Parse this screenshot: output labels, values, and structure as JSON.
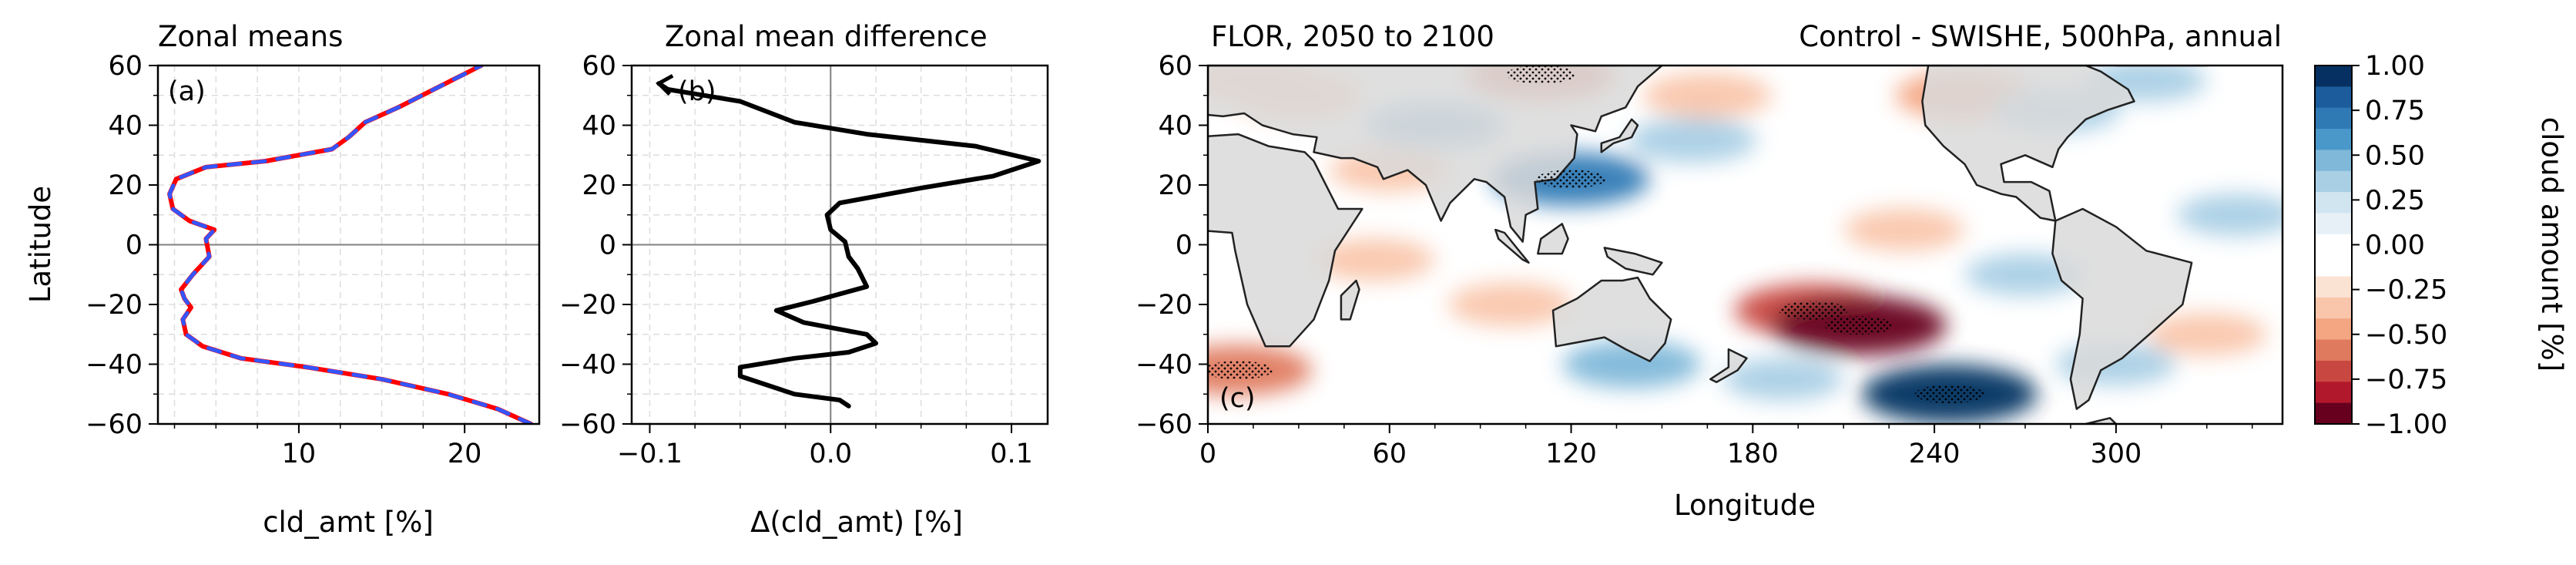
{
  "chart_data": [
    {
      "type": "line",
      "panel_label": "(a)",
      "title": "Zonal means",
      "xlabel": "cld_amt [%]",
      "ylabel": "Latitude",
      "xlim": [
        1.5,
        24.5
      ],
      "ylim": [
        -60,
        60
      ],
      "x_ticks": [
        10,
        20
      ],
      "y_ticks": [
        -60,
        -40,
        -20,
        0,
        20,
        40,
        60
      ],
      "grid": true,
      "series": [
        {
          "color": "#ff0000",
          "dash": false,
          "points": [
            [
              24,
              -60
            ],
            [
              22,
              -55
            ],
            [
              19,
              -50
            ],
            [
              15,
              -45
            ],
            [
              10.5,
              -41
            ],
            [
              6.5,
              -38
            ],
            [
              4.2,
              -34
            ],
            [
              3.2,
              -30
            ],
            [
              3,
              -25
            ],
            [
              3.5,
              -21
            ],
            [
              3.1,
              -18
            ],
            [
              2.9,
              -15
            ],
            [
              3.6,
              -10
            ],
            [
              4.6,
              -4
            ],
            [
              4.4,
              2
            ],
            [
              4.9,
              5
            ],
            [
              3.4,
              8
            ],
            [
              2.4,
              12
            ],
            [
              2.2,
              17
            ],
            [
              2.6,
              22
            ],
            [
              4.4,
              26
            ],
            [
              8,
              28
            ],
            [
              12,
              32
            ],
            [
              13,
              36
            ],
            [
              14,
              41
            ],
            [
              16,
              46
            ],
            [
              18.5,
              53
            ],
            [
              21,
              60
            ]
          ]
        },
        {
          "color": "#3355ff",
          "dash": true,
          "points": [
            [
              24,
              -60
            ],
            [
              22,
              -55
            ],
            [
              19,
              -50
            ],
            [
              15,
              -45
            ],
            [
              10.5,
              -41
            ],
            [
              6.5,
              -38
            ],
            [
              4.2,
              -34
            ],
            [
              3.2,
              -30
            ],
            [
              3,
              -25
            ],
            [
              3.5,
              -21
            ],
            [
              3.1,
              -18
            ],
            [
              2.9,
              -15
            ],
            [
              3.6,
              -10
            ],
            [
              4.6,
              -4
            ],
            [
              4.4,
              2
            ],
            [
              4.9,
              5
            ],
            [
              3.4,
              8
            ],
            [
              2.4,
              12
            ],
            [
              2.2,
              17
            ],
            [
              2.6,
              22
            ],
            [
              4.4,
              26
            ],
            [
              8,
              28
            ],
            [
              12,
              32
            ],
            [
              13,
              36
            ],
            [
              14,
              41
            ],
            [
              16,
              46
            ],
            [
              18.5,
              53
            ],
            [
              21,
              60
            ]
          ]
        }
      ]
    },
    {
      "type": "line",
      "panel_label": "(b)",
      "title": "Zonal mean difference",
      "xlabel": "Δ(cld_amt) [%]",
      "ylabel": "",
      "xlim": [
        -0.11,
        0.12
      ],
      "ylim": [
        -60,
        60
      ],
      "x_ticks": [
        -0.1,
        0.0,
        0.1
      ],
      "x_tick_labels": [
        "−0.1",
        "0.0",
        "0.1"
      ],
      "y_ticks": [
        -60,
        -40,
        -20,
        0,
        20,
        40,
        60
      ],
      "grid": true,
      "series": [
        {
          "color": "#000000",
          "points": [
            [
              0.01,
              -54
            ],
            [
              0.005,
              -52
            ],
            [
              -0.02,
              -50
            ],
            [
              -0.05,
              -44
            ],
            [
              -0.05,
              -41
            ],
            [
              -0.02,
              -38
            ],
            [
              0.01,
              -36
            ],
            [
              0.025,
              -33
            ],
            [
              0.02,
              -30
            ],
            [
              -0.015,
              -26
            ],
            [
              -0.03,
              -22
            ],
            [
              -0.01,
              -19
            ],
            [
              0.02,
              -14
            ],
            [
              0.015,
              -8
            ],
            [
              0.01,
              -4
            ],
            [
              0.008,
              1
            ],
            [
              0.0,
              5
            ],
            [
              -0.002,
              10
            ],
            [
              0.005,
              14
            ],
            [
              0.05,
              19
            ],
            [
              0.09,
              23
            ],
            [
              0.115,
              28
            ],
            [
              0.08,
              33
            ],
            [
              0.02,
              37
            ],
            [
              -0.02,
              41
            ],
            [
              -0.05,
              48
            ],
            [
              -0.09,
              52
            ],
            [
              -0.095,
              54
            ]
          ]
        }
      ]
    },
    {
      "type": "heatmap",
      "panel_label": "(c)",
      "title_left": "FLOR, 2050 to 2100",
      "title_right": "Control - SWISHE, 500hPa, annual",
      "xlabel": "Longitude",
      "ylabel": "",
      "xlim": [
        0,
        355
      ],
      "ylim": [
        -60,
        60
      ],
      "x_ticks": [
        0,
        60,
        120,
        180,
        240,
        300
      ],
      "y_ticks": [
        -60,
        -40,
        -20,
        0,
        20,
        40,
        60
      ],
      "colorbar": {
        "label": "cloud amount [%]",
        "ticks": [
          1.0,
          0.75,
          0.5,
          0.25,
          0.0,
          -0.25,
          -0.5,
          -0.75,
          -1.0
        ],
        "tick_labels": [
          "1.00",
          "0.75",
          "0.50",
          "0.25",
          "0.00",
          "−0.25",
          "−0.50",
          "−0.75",
          "−1.00"
        ],
        "colors": [
          "#053061",
          "#1c5c9c",
          "#2f79b5",
          "#4a98c9",
          "#7fb8d9",
          "#a9cfe5",
          "#d1e5f0",
          "#e7f0f6",
          "#ffffff",
          "#ffffff",
          "#fbe3d4",
          "#f9c6ab",
          "#f4a582",
          "#e07a5f",
          "#c94741",
          "#b2182b",
          "#67001f"
        ]
      },
      "land_color": "#d9d9d9",
      "anomalies": [
        {
          "lon": 200,
          "lat": -22,
          "value": -0.7
        },
        {
          "lon": 215,
          "lat": -27,
          "value": -0.9
        },
        {
          "lon": 245,
          "lat": -50,
          "value": 0.9
        },
        {
          "lon": 120,
          "lat": 22,
          "value": 0.7
        },
        {
          "lon": 75,
          "lat": 40,
          "value": 0.5
        },
        {
          "lon": 140,
          "lat": -40,
          "value": 0.5
        },
        {
          "lon": 10,
          "lat": -42,
          "value": -0.6
        },
        {
          "lon": 110,
          "lat": 57,
          "value": -0.6
        },
        {
          "lon": 165,
          "lat": 50,
          "value": -0.4
        },
        {
          "lon": 250,
          "lat": 50,
          "value": -0.5
        },
        {
          "lon": 280,
          "lat": 45,
          "value": 0.4
        },
        {
          "lon": 30,
          "lat": 50,
          "value": -0.4
        },
        {
          "lon": 55,
          "lat": -5,
          "value": -0.3
        },
        {
          "lon": 160,
          "lat": 35,
          "value": 0.4
        },
        {
          "lon": 230,
          "lat": 5,
          "value": -0.3
        },
        {
          "lon": 300,
          "lat": -40,
          "value": 0.3
        },
        {
          "lon": 330,
          "lat": -30,
          "value": -0.3
        },
        {
          "lon": 270,
          "lat": -10,
          "value": 0.3
        },
        {
          "lon": 100,
          "lat": -20,
          "value": -0.35
        },
        {
          "lon": 60,
          "lat": 25,
          "value": -0.3
        },
        {
          "lon": 340,
          "lat": 10,
          "value": 0.3
        },
        {
          "lon": 15,
          "lat": 55,
          "value": -0.4
        },
        {
          "lon": 190,
          "lat": -45,
          "value": 0.3
        },
        {
          "lon": 310,
          "lat": 55,
          "value": 0.3
        }
      ]
    }
  ]
}
